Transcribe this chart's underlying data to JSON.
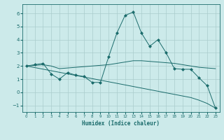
{
  "background_color": "#cceaea",
  "grid_color": "#aacccc",
  "line_color": "#1a6b6b",
  "xlabel": "Humidex (Indice chaleur)",
  "xlim": [
    -0.5,
    23.5
  ],
  "ylim": [
    -1.5,
    6.7
  ],
  "yticks": [
    -1,
    0,
    1,
    2,
    3,
    4,
    5,
    6
  ],
  "xticks": [
    0,
    1,
    2,
    3,
    4,
    5,
    6,
    7,
    8,
    9,
    10,
    11,
    12,
    13,
    14,
    15,
    16,
    17,
    18,
    19,
    20,
    21,
    22,
    23
  ],
  "series": [
    {
      "x": [
        0,
        1,
        2,
        3,
        4,
        5,
        6,
        7,
        8,
        9,
        10,
        11,
        12,
        13,
        14,
        15,
        16,
        17,
        18,
        19,
        20,
        21,
        22,
        23
      ],
      "y": [
        2.0,
        2.1,
        2.2,
        1.4,
        1.0,
        1.5,
        1.3,
        1.2,
        0.75,
        0.75,
        2.7,
        4.5,
        5.85,
        6.1,
        4.5,
        3.5,
        4.0,
        3.0,
        1.8,
        1.75,
        1.75,
        1.1,
        0.5,
        -1.2
      ],
      "marker": "D",
      "markersize": 2.0
    },
    {
      "x": [
        0,
        1,
        2,
        3,
        4,
        5,
        6,
        7,
        8,
        9,
        10,
        11,
        12,
        13,
        14,
        15,
        16,
        17,
        18,
        19,
        20,
        21,
        22,
        23
      ],
      "y": [
        2.0,
        2.05,
        2.1,
        2.0,
        1.8,
        1.85,
        1.9,
        1.95,
        2.0,
        2.05,
        2.1,
        2.2,
        2.3,
        2.4,
        2.4,
        2.35,
        2.3,
        2.25,
        2.2,
        2.1,
        2.0,
        1.9,
        1.85,
        1.8
      ],
      "marker": null,
      "markersize": 0
    },
    {
      "x": [
        0,
        1,
        2,
        3,
        4,
        5,
        6,
        7,
        8,
        9,
        10,
        11,
        12,
        13,
        14,
        15,
        16,
        17,
        18,
        19,
        20,
        21,
        22,
        23
      ],
      "y": [
        2.0,
        1.88,
        1.76,
        1.64,
        1.52,
        1.4,
        1.28,
        1.16,
        1.04,
        0.92,
        0.8,
        0.68,
        0.56,
        0.44,
        0.32,
        0.2,
        0.08,
        -0.04,
        -0.16,
        -0.28,
        -0.4,
        -0.6,
        -0.85,
        -1.2
      ],
      "marker": null,
      "markersize": 0
    }
  ]
}
